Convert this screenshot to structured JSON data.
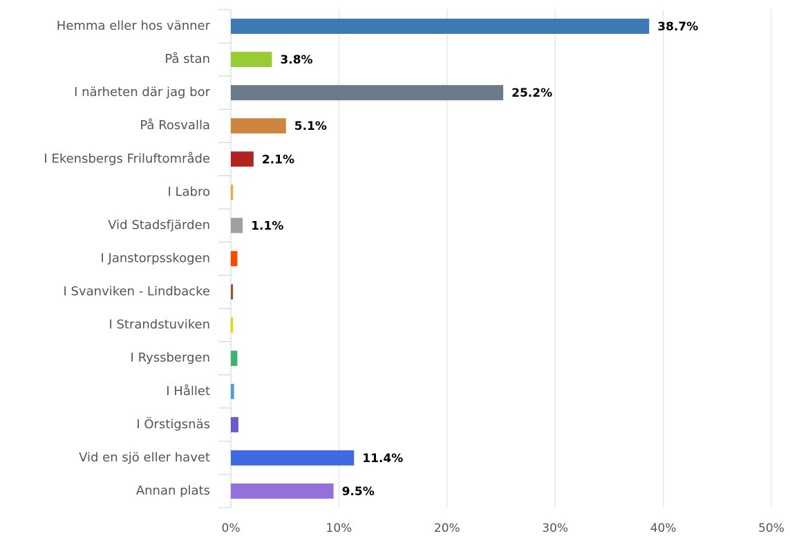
{
  "chart_data": {
    "type": "bar",
    "orientation": "horizontal",
    "categories": [
      "Hemma eller hos vänner",
      "På stan",
      "I närheten där jag bor",
      "På Rosvalla",
      "I Ekensbergs Friluftområde",
      "I Labro",
      "Vid Stadsfjärden",
      "I Janstorpsskogen",
      "I Svanviken - Lindbacke",
      "I Strandstuviken",
      "I Ryssbergen",
      "I Hållet",
      "I Örstigsnäs",
      "Vid en sjö eller havet",
      "Annan plats"
    ],
    "values": [
      38.7,
      3.8,
      25.2,
      5.1,
      2.1,
      0.2,
      1.1,
      0.6,
      0.2,
      0.2,
      0.6,
      0.3,
      0.7,
      11.4,
      9.5
    ],
    "value_labels": [
      "38.7%",
      "3.8%",
      "25.2%",
      "5.1%",
      "2.1%",
      null,
      "1.1%",
      null,
      null,
      null,
      null,
      null,
      null,
      "11.4%",
      "9.5%"
    ],
    "colors": [
      "#3d7ab5",
      "#99cc33",
      "#6b7b8c",
      "#cd8540",
      "#b22222",
      "#f0a830",
      "#a0a0a0",
      "#ff4500",
      "#a0522d",
      "#f0d000",
      "#3cb371",
      "#4a9fd8",
      "#6a5acd",
      "#4169e1",
      "#9370db"
    ],
    "xlim": [
      0,
      50
    ],
    "xticks": [
      {
        "value": 0,
        "label": "0%"
      },
      {
        "value": 10,
        "label": "10%"
      },
      {
        "value": 20,
        "label": "20%"
      },
      {
        "value": 30,
        "label": "30%"
      },
      {
        "value": 40,
        "label": "40%"
      },
      {
        "value": 50,
        "label": "50%"
      }
    ],
    "grid": true
  }
}
